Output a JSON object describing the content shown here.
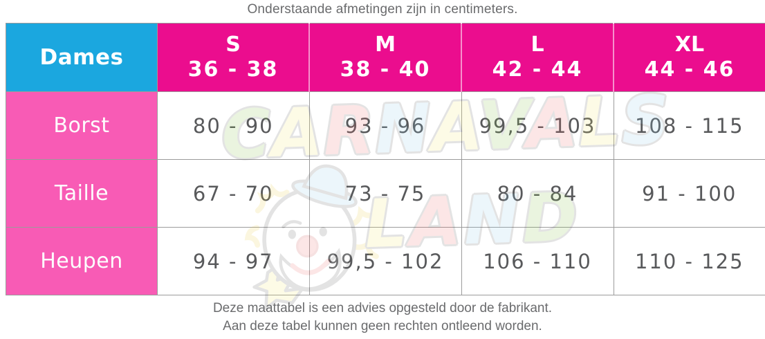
{
  "caption_top": "Onderstaande afmetingen zijn in centimeters.",
  "table": {
    "corner_label": "Dames",
    "columns": [
      {
        "size": "S",
        "range": "36 - 38"
      },
      {
        "size": "M",
        "range": "38 - 40"
      },
      {
        "size": "L",
        "range": "42 - 44"
      },
      {
        "size": "XL",
        "range": "44 - 46"
      }
    ],
    "rows": [
      {
        "label": "Borst",
        "values": [
          "80 - 90",
          "93 - 96",
          "99,5 - 103",
          "108 - 115"
        ]
      },
      {
        "label": "Taille",
        "values": [
          "67 - 70",
          "73 - 75",
          "80 - 84",
          "91 - 100"
        ]
      },
      {
        "label": "Heupen",
        "values": [
          "94 - 97",
          "99,5 - 102",
          "106 - 110",
          "110 - 125"
        ]
      }
    ]
  },
  "footer_lines": [
    "Deze maattabel is een advies opgesteld door de fabrikant.",
    "Aan deze tabel kunnen geen rechten ontleend worden."
  ],
  "watermark": {
    "line1": "CARNAVALS",
    "line2": "LAND",
    "line1_colors": [
      "#7fc241",
      "#f5e96a",
      "#ef6a6a",
      "#8ecbe8",
      "#f5e96a",
      "#7fc241",
      "#ef6a6a",
      "#f5e96a",
      "#8ecbe8"
    ],
    "line2_colors": [
      "#f5e96a",
      "#ef6a6a",
      "#8ecbe8",
      "#7fc241"
    ]
  },
  "colors": {
    "header_blue": "#1ba7df",
    "header_magenta": "#eb0d8e",
    "row_pink": "#f85bb5",
    "value_text": "#58595b",
    "caption_text": "#6a6b6d",
    "grid_line": "#9b9b9b"
  },
  "chart_data": {
    "type": "table",
    "title": "Onderstaande afmetingen zijn in centimeters.",
    "corner_header": "Dames",
    "column_headers": [
      "S 36 - 38",
      "M 38 - 40",
      "L 42 - 44",
      "XL 44 - 46"
    ],
    "row_headers": [
      "Borst",
      "Taille",
      "Heupen"
    ],
    "cells": [
      [
        "80 - 90",
        "93 - 96",
        "99,5 - 103",
        "108 - 115"
      ],
      [
        "67 - 70",
        "73 - 75",
        "80 - 84",
        "91 - 100"
      ],
      [
        "94 - 97",
        "99,5 - 102",
        "106 - 110",
        "110 - 125"
      ]
    ],
    "footnotes": [
      "Deze maattabel is een advies opgesteld door de fabrikant.",
      "Aan deze tabel kunnen geen rechten ontleend worden."
    ]
  }
}
